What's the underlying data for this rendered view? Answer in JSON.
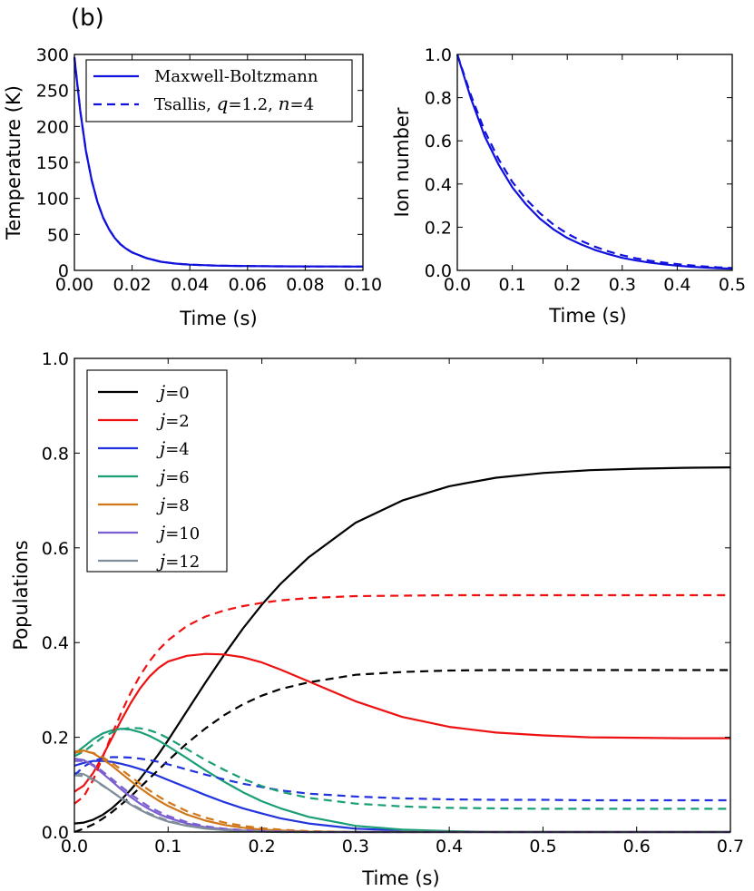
{
  "panel_label": "(b)",
  "chart_data": [
    {
      "type": "line",
      "title": "",
      "xlabel": "Time (s)",
      "ylabel": "Temperature (K)",
      "xlim": [
        0,
        0.1
      ],
      "ylim": [
        0,
        300
      ],
      "xticks": [
        "0.00",
        "0.02",
        "0.04",
        "0.06",
        "0.08",
        "0.10"
      ],
      "yticks": [
        "0",
        "50",
        "100",
        "150",
        "200",
        "250",
        "300"
      ],
      "legend_position": "top-right",
      "series": [
        {
          "name": "Maxwell-Boltzmann",
          "style": "solid",
          "color": "#1111dd",
          "x": [
            0,
            0.002,
            0.004,
            0.006,
            0.008,
            0.01,
            0.012,
            0.014,
            0.016,
            0.018,
            0.02,
            0.025,
            0.03,
            0.035,
            0.04,
            0.05,
            0.06,
            0.07,
            0.08,
            0.09,
            0.1
          ],
          "y": [
            296,
            222,
            166,
            125,
            95,
            73,
            57,
            45,
            36,
            30,
            25,
            17,
            12,
            9.5,
            8,
            6.5,
            6,
            5.7,
            5.5,
            5.4,
            5.3
          ]
        },
        {
          "name": "Tsallis, q=1.2, n=4",
          "style": "dashed",
          "color": "#1111dd",
          "x": [
            0,
            0.002,
            0.004,
            0.006,
            0.008,
            0.01,
            0.012,
            0.014,
            0.016,
            0.018,
            0.02,
            0.025,
            0.03,
            0.035,
            0.04,
            0.05,
            0.06,
            0.07,
            0.08,
            0.09,
            0.1
          ],
          "y": [
            296,
            222,
            166,
            125,
            95,
            73,
            57,
            45,
            36,
            30,
            25,
            17,
            12,
            9.5,
            8,
            6.5,
            6,
            5.7,
            5.5,
            5.4,
            5.3
          ]
        }
      ]
    },
    {
      "type": "line",
      "title": "",
      "xlabel": "Time (s)",
      "ylabel": "Ion number",
      "xlim": [
        0,
        0.5
      ],
      "ylim": [
        0,
        1.0
      ],
      "xticks": [
        "0.0",
        "0.1",
        "0.2",
        "0.3",
        "0.4",
        "0.5"
      ],
      "yticks": [
        "0.0",
        "0.2",
        "0.4",
        "0.6",
        "0.8",
        "1.0"
      ],
      "series": [
        {
          "name": "Maxwell-Boltzmann",
          "style": "solid",
          "color": "#1111dd",
          "x": [
            0,
            0.025,
            0.05,
            0.075,
            0.1,
            0.125,
            0.15,
            0.175,
            0.2,
            0.225,
            0.25,
            0.275,
            0.3,
            0.325,
            0.35,
            0.375,
            0.4,
            0.425,
            0.45,
            0.475,
            0.5
          ],
          "y": [
            1.0,
            0.795,
            0.62,
            0.49,
            0.385,
            0.305,
            0.24,
            0.19,
            0.15,
            0.12,
            0.095,
            0.075,
            0.058,
            0.046,
            0.036,
            0.028,
            0.022,
            0.017,
            0.013,
            0.01,
            0.008
          ]
        },
        {
          "name": "Tsallis, q=1.2, n=4",
          "style": "dashed",
          "color": "#1111dd",
          "x": [
            0,
            0.025,
            0.05,
            0.075,
            0.1,
            0.125,
            0.15,
            0.175,
            0.2,
            0.225,
            0.25,
            0.275,
            0.3,
            0.325,
            0.35,
            0.375,
            0.4,
            0.425,
            0.45,
            0.475,
            0.5
          ],
          "y": [
            1.0,
            0.81,
            0.645,
            0.515,
            0.41,
            0.33,
            0.265,
            0.212,
            0.17,
            0.137,
            0.11,
            0.088,
            0.07,
            0.056,
            0.045,
            0.036,
            0.029,
            0.023,
            0.018,
            0.014,
            0.011
          ]
        }
      ]
    },
    {
      "type": "line",
      "title": "",
      "xlabel": "Time (s)",
      "ylabel": "Populations",
      "xlim": [
        0,
        0.7
      ],
      "ylim": [
        0,
        1.0
      ],
      "xticks": [
        "0.0",
        "0.1",
        "0.2",
        "0.3",
        "0.4",
        "0.5",
        "0.6",
        "0.7"
      ],
      "yticks": [
        "0.0",
        "0.2",
        "0.4",
        "0.6",
        "0.8",
        "1.0"
      ],
      "legend_position": "top-left",
      "x": [
        0,
        0.01,
        0.02,
        0.03,
        0.04,
        0.05,
        0.06,
        0.07,
        0.08,
        0.09,
        0.1,
        0.12,
        0.14,
        0.16,
        0.18,
        0.2,
        0.22,
        0.25,
        0.3,
        0.35,
        0.4,
        0.45,
        0.5,
        0.55,
        0.6,
        0.65,
        0.7
      ],
      "series": [
        {
          "name": "j=0",
          "style": "solid",
          "color": "#000000",
          "y": [
            0.018,
            0.02,
            0.026,
            0.036,
            0.05,
            0.068,
            0.089,
            0.112,
            0.138,
            0.165,
            0.194,
            0.255,
            0.316,
            0.375,
            0.43,
            0.48,
            0.524,
            0.58,
            0.653,
            0.7,
            0.73,
            0.748,
            0.758,
            0.764,
            0.767,
            0.769,
            0.77
          ]
        },
        {
          "name": "j=2",
          "style": "solid",
          "color": "#ee1111",
          "y": [
            0.085,
            0.098,
            0.125,
            0.16,
            0.198,
            0.236,
            0.272,
            0.303,
            0.328,
            0.347,
            0.36,
            0.372,
            0.376,
            0.375,
            0.369,
            0.358,
            0.343,
            0.318,
            0.276,
            0.243,
            0.222,
            0.21,
            0.204,
            0.2,
            0.199,
            0.198,
            0.198
          ]
        },
        {
          "name": "j=4",
          "style": "solid",
          "color": "#2233dd",
          "y": [
            0.14,
            0.146,
            0.15,
            0.15,
            0.148,
            0.144,
            0.139,
            0.133,
            0.126,
            0.118,
            0.11,
            0.094,
            0.078,
            0.063,
            0.05,
            0.039,
            0.029,
            0.018,
            0.007,
            0.003,
            0.001,
            0.0,
            0.0,
            0.0,
            0.0,
            0.0,
            0.0
          ]
        },
        {
          "name": "j=6",
          "style": "solid",
          "color": "#1a9e77",
          "y": [
            0.165,
            0.18,
            0.196,
            0.208,
            0.215,
            0.218,
            0.216,
            0.211,
            0.203,
            0.193,
            0.181,
            0.156,
            0.13,
            0.106,
            0.084,
            0.065,
            0.05,
            0.032,
            0.013,
            0.005,
            0.002,
            0.0,
            0.0,
            0.0,
            0.0,
            0.0,
            0.0
          ]
        },
        {
          "name": "j=8",
          "style": "solid",
          "color": "#d0771a",
          "y": [
            0.17,
            0.172,
            0.166,
            0.154,
            0.14,
            0.124,
            0.108,
            0.093,
            0.079,
            0.066,
            0.055,
            0.037,
            0.024,
            0.015,
            0.009,
            0.005,
            0.003,
            0.001,
            0.0,
            0.0,
            0.0,
            0.0,
            0.0,
            0.0,
            0.0,
            0.0,
            0.0
          ]
        },
        {
          "name": "j=10",
          "style": "solid",
          "color": "#7b5fd0",
          "y": [
            0.155,
            0.152,
            0.14,
            0.124,
            0.107,
            0.09,
            0.074,
            0.06,
            0.048,
            0.038,
            0.03,
            0.018,
            0.01,
            0.006,
            0.003,
            0.002,
            0.001,
            0.0,
            0.0,
            0.0,
            0.0,
            0.0,
            0.0,
            0.0,
            0.0,
            0.0,
            0.0
          ]
        },
        {
          "name": "j=12",
          "style": "solid",
          "color": "#7f8c99",
          "y": [
            0.125,
            0.122,
            0.112,
            0.099,
            0.085,
            0.071,
            0.058,
            0.047,
            0.037,
            0.029,
            0.022,
            0.013,
            0.007,
            0.004,
            0.002,
            0.001,
            0.0,
            0.0,
            0.0,
            0.0,
            0.0,
            0.0,
            0.0,
            0.0,
            0.0,
            0.0,
            0.0
          ]
        },
        {
          "name": "j=0 (Tsallis)",
          "style": "dashed",
          "color": "#000000",
          "y": [
            0.0,
            0.007,
            0.016,
            0.028,
            0.042,
            0.058,
            0.075,
            0.094,
            0.113,
            0.132,
            0.151,
            0.187,
            0.219,
            0.247,
            0.27,
            0.288,
            0.302,
            0.316,
            0.332,
            0.338,
            0.341,
            0.342,
            0.342,
            0.342,
            0.342,
            0.342,
            0.342
          ]
        },
        {
          "name": "j=2 (Tsallis)",
          "style": "dashed",
          "color": "#ee1111",
          "y": [
            0.06,
            0.075,
            0.11,
            0.157,
            0.206,
            0.252,
            0.294,
            0.33,
            0.36,
            0.385,
            0.405,
            0.435,
            0.455,
            0.468,
            0.477,
            0.484,
            0.489,
            0.494,
            0.498,
            0.499,
            0.5,
            0.5,
            0.5,
            0.5,
            0.5,
            0.5,
            0.5
          ]
        },
        {
          "name": "j=4 (Tsallis)",
          "style": "dashed",
          "color": "#2233dd",
          "y": [
            0.12,
            0.138,
            0.15,
            0.156,
            0.158,
            0.158,
            0.157,
            0.155,
            0.152,
            0.148,
            0.143,
            0.132,
            0.121,
            0.111,
            0.102,
            0.095,
            0.088,
            0.081,
            0.075,
            0.071,
            0.069,
            0.068,
            0.068,
            0.067,
            0.067,
            0.067,
            0.067
          ]
        },
        {
          "name": "j=6 (Tsallis)",
          "style": "dashed",
          "color": "#1a9e77",
          "y": [
            0.16,
            0.17,
            0.185,
            0.2,
            0.21,
            0.217,
            0.22,
            0.219,
            0.215,
            0.208,
            0.198,
            0.175,
            0.152,
            0.131,
            0.112,
            0.097,
            0.085,
            0.072,
            0.06,
            0.054,
            0.051,
            0.05,
            0.049,
            0.049,
            0.049,
            0.049,
            0.049
          ]
        },
        {
          "name": "j=8 (Tsallis)",
          "style": "dashed",
          "color": "#d0771a",
          "y": [
            0.168,
            0.17,
            0.167,
            0.158,
            0.146,
            0.132,
            0.117,
            0.102,
            0.088,
            0.075,
            0.063,
            0.044,
            0.03,
            0.02,
            0.013,
            0.008,
            0.005,
            0.002,
            0.0,
            0.0,
            0.0,
            0.0,
            0.0,
            0.0,
            0.0,
            0.0,
            0.0
          ]
        },
        {
          "name": "j=10 (Tsallis)",
          "style": "dashed",
          "color": "#7b5fd0",
          "y": [
            0.15,
            0.15,
            0.142,
            0.128,
            0.112,
            0.096,
            0.08,
            0.066,
            0.053,
            0.043,
            0.034,
            0.021,
            0.012,
            0.007,
            0.004,
            0.002,
            0.001,
            0.0,
            0.0,
            0.0,
            0.0,
            0.0,
            0.0,
            0.0,
            0.0,
            0.0,
            0.0
          ]
        },
        {
          "name": "j=12 (Tsallis)",
          "style": "dashed",
          "color": "#7f8c99",
          "y": [
            0.12,
            0.118,
            0.11,
            0.098,
            0.085,
            0.072,
            0.06,
            0.049,
            0.039,
            0.031,
            0.024,
            0.014,
            0.008,
            0.004,
            0.002,
            0.001,
            0.0,
            0.0,
            0.0,
            0.0,
            0.0,
            0.0,
            0.0,
            0.0,
            0.0,
            0.0,
            0.0
          ]
        }
      ]
    }
  ],
  "legend_top": [
    {
      "text": "Maxwell-Boltzmann",
      "style": "solid",
      "color": "#1111dd"
    },
    {
      "text_prefix": "Tsallis, ",
      "q_label": "q",
      "q_value": "=1.2, ",
      "n_label": "n",
      "n_value": "=4",
      "style": "dashed",
      "color": "#1111dd"
    }
  ],
  "legend_bottom": [
    {
      "var": "j",
      "value": "=0",
      "color": "#000000"
    },
    {
      "var": "j",
      "value": "=2",
      "color": "#ee1111"
    },
    {
      "var": "j",
      "value": "=4",
      "color": "#2233dd"
    },
    {
      "var": "j",
      "value": "=6",
      "color": "#1a9e77"
    },
    {
      "var": "j",
      "value": "=8",
      "color": "#d0771a"
    },
    {
      "var": "j",
      "value": "=10",
      "color": "#7b5fd0"
    },
    {
      "var": "j",
      "value": "=12",
      "color": "#7f8c99"
    }
  ]
}
